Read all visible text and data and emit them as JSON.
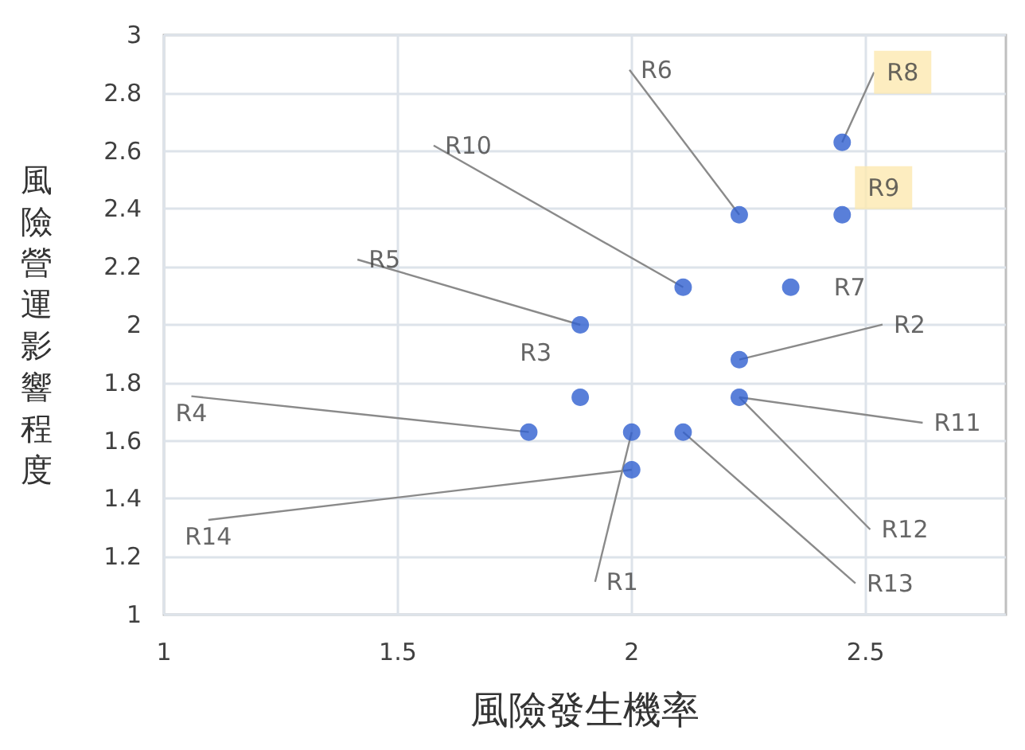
{
  "chart_data": {
    "type": "scatter",
    "xlabel": "風險發生機率",
    "ylabel": "風險營運影響程度",
    "series": [
      {
        "color": "#2f5fcf",
        "x": [
          2.0,
          2.23,
          1.89,
          1.78,
          1.89,
          2.23,
          2.34,
          2.45,
          2.45,
          2.11,
          2.23,
          2.11,
          2.0
        ],
        "values": [
          1.63,
          1.88,
          1.75,
          1.63,
          2.0,
          2.38,
          2.13,
          2.63,
          2.38,
          2.13,
          1.75,
          1.63,
          1.5
        ]
      }
    ],
    "annotations": [
      {
        "text": "R1",
        "x": 2.0,
        "y": 1.63
      },
      {
        "text": "R2",
        "x": 2.23,
        "y": 1.88
      },
      {
        "text": "R3",
        "x": 1.89,
        "y": 1.75
      },
      {
        "text": "R4",
        "x": 1.78,
        "y": 1.63
      },
      {
        "text": "R5",
        "x": 1.89,
        "y": 2.0
      },
      {
        "text": "R6",
        "x": 2.23,
        "y": 2.38
      },
      {
        "text": "R7",
        "x": 2.34,
        "y": 2.13
      },
      {
        "text": "R8",
        "x": 2.45,
        "y": 2.63
      },
      {
        "text": "R9",
        "x": 2.45,
        "y": 2.38
      },
      {
        "text": "R10",
        "x": 2.11,
        "y": 2.13
      },
      {
        "text": "R11",
        "x": 2.23,
        "y": 1.75
      },
      {
        "text": "R12",
        "x": 2.23,
        "y": 1.75
      },
      {
        "text": "R13",
        "x": 2.11,
        "y": 1.63
      },
      {
        "text": "R14",
        "x": 2.0,
        "y": 1.5
      }
    ],
    "xlim": [
      1,
      2.8
    ],
    "xticks": [
      1,
      1.5,
      2,
      2.5
    ],
    "ylim": [
      1,
      3
    ],
    "yticks": [
      1,
      1.2,
      1.4,
      1.6,
      1.8,
      2,
      2.2,
      2.4,
      2.6,
      2.8,
      3
    ],
    "grid": true,
    "marker": "circle"
  }
}
